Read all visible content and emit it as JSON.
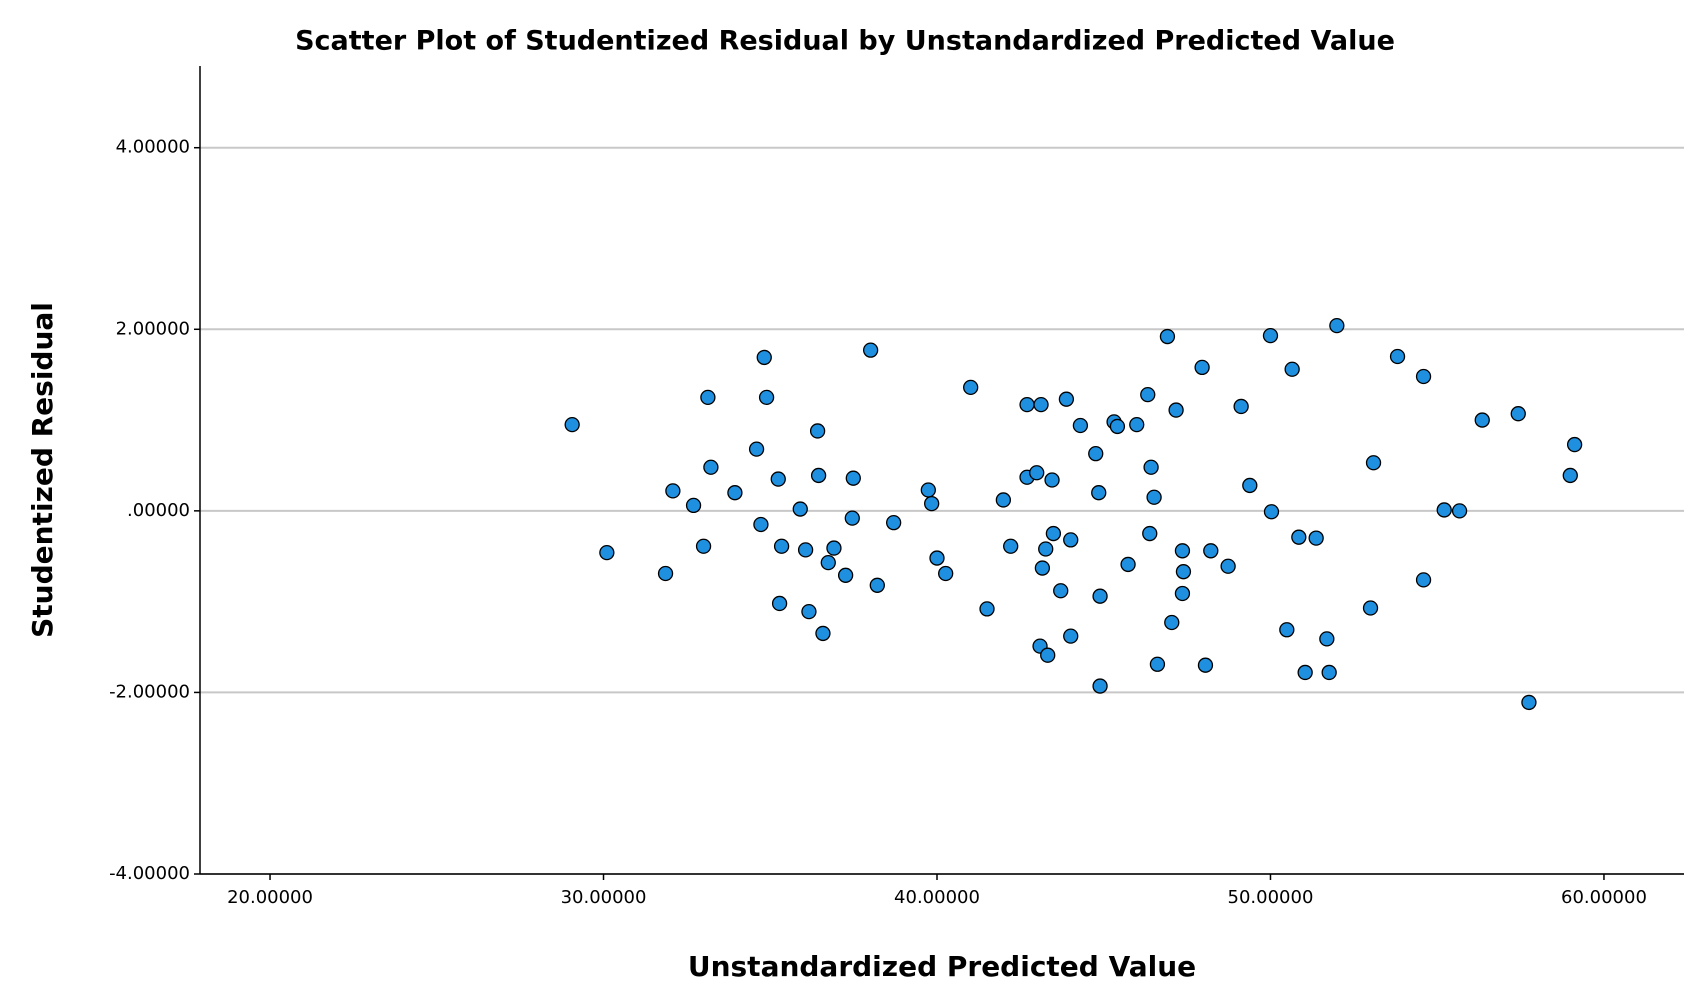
{
  "chart_data": {
    "type": "scatter",
    "title": "Scatter Plot of Studentized Residual by Unstandardized Predicted Value",
    "x_label": "Unstandardized Predicted Value",
    "y_label": "Studentized Residual",
    "xlim": [
      17.9,
      62.4
    ],
    "ylim": [
      -4,
      4.9
    ],
    "xticks": [
      {
        "value": 20,
        "label": "20.00000"
      },
      {
        "value": 30,
        "label": "30.00000"
      },
      {
        "value": 40,
        "label": "40.00000"
      },
      {
        "value": 50,
        "label": "50.00000"
      },
      {
        "value": 60,
        "label": "60.00000"
      }
    ],
    "yticks": [
      {
        "value": -4,
        "label": "-4.00000"
      },
      {
        "value": -2,
        "label": "-2.00000"
      },
      {
        "value": 0,
        "label": ".00000"
      },
      {
        "value": 2,
        "label": "2.00000"
      },
      {
        "value": 4,
        "label": "4.00000"
      }
    ],
    "grid": true,
    "color": "#1f8fe0",
    "x": [
      29.06,
      30.1,
      31.86,
      32.08,
      32.7,
      33.0,
      33.13,
      33.22,
      33.94,
      34.59,
      34.72,
      34.82,
      34.89,
      35.24,
      35.34,
      35.28,
      35.9,
      36.06,
      36.16,
      36.42,
      36.45,
      36.58,
      36.74,
      36.91,
      37.26,
      37.46,
      37.49,
      38.01,
      38.21,
      38.7,
      39.74,
      39.84,
      40.0,
      40.26,
      41.01,
      41.5,
      41.99,
      42.21,
      42.7,
      42.7,
      42.99,
      43.12,
      43.09,
      43.16,
      43.26,
      43.32,
      43.45,
      43.49,
      43.71,
      43.88,
      44.01,
      44.01,
      44.3,
      44.76,
      44.85,
      44.89,
      44.89,
      45.31,
      45.41,
      45.73,
      45.99,
      46.32,
      46.38,
      46.42,
      46.51,
      46.61,
      46.91,
      47.04,
      47.17,
      47.36,
      47.39,
      47.36,
      47.95,
      48.05,
      48.21,
      48.73,
      49.12,
      49.38,
      50.0,
      50.03,
      50.49,
      50.65,
      50.85,
      51.04,
      51.37,
      51.69,
      51.76,
      51.99,
      53.0,
      53.09,
      53.81,
      54.59,
      54.59,
      55.21,
      55.67,
      56.35,
      57.43,
      57.75,
      58.99,
      59.12
    ],
    "values": [
      0.95,
      -0.46,
      -0.69,
      0.22,
      0.06,
      -0.39,
      1.25,
      0.48,
      0.2,
      0.68,
      -0.15,
      1.69,
      1.25,
      0.35,
      -0.39,
      -1.02,
      0.02,
      -0.43,
      -1.11,
      0.88,
      0.39,
      -1.35,
      -0.57,
      -0.41,
      -0.71,
      -0.08,
      0.36,
      1.77,
      -0.82,
      -0.13,
      0.23,
      0.08,
      -0.52,
      -0.69,
      1.36,
      -1.08,
      0.12,
      -0.39,
      1.17,
      0.37,
      0.42,
      1.17,
      -1.49,
      -0.63,
      -0.42,
      -1.59,
      0.34,
      -0.25,
      -0.88,
      1.23,
      -0.32,
      -1.38,
      0.94,
      0.63,
      0.2,
      -0.94,
      -1.93,
      0.98,
      0.93,
      -0.59,
      0.95,
      1.28,
      -0.25,
      0.48,
      0.15,
      -1.69,
      1.92,
      -1.23,
      1.11,
      -0.44,
      -0.67,
      -0.91,
      1.58,
      -1.7,
      -0.44,
      -0.61,
      1.15,
      0.28,
      1.93,
      -0.01,
      -1.31,
      1.56,
      -0.29,
      -1.78,
      -0.3,
      -1.41,
      -1.78,
      2.04,
      -1.07,
      0.53,
      1.7,
      1.48,
      -0.76,
      0.01,
      0.0,
      1.0,
      1.07,
      -2.11,
      0.39,
      0.73
    ]
  }
}
